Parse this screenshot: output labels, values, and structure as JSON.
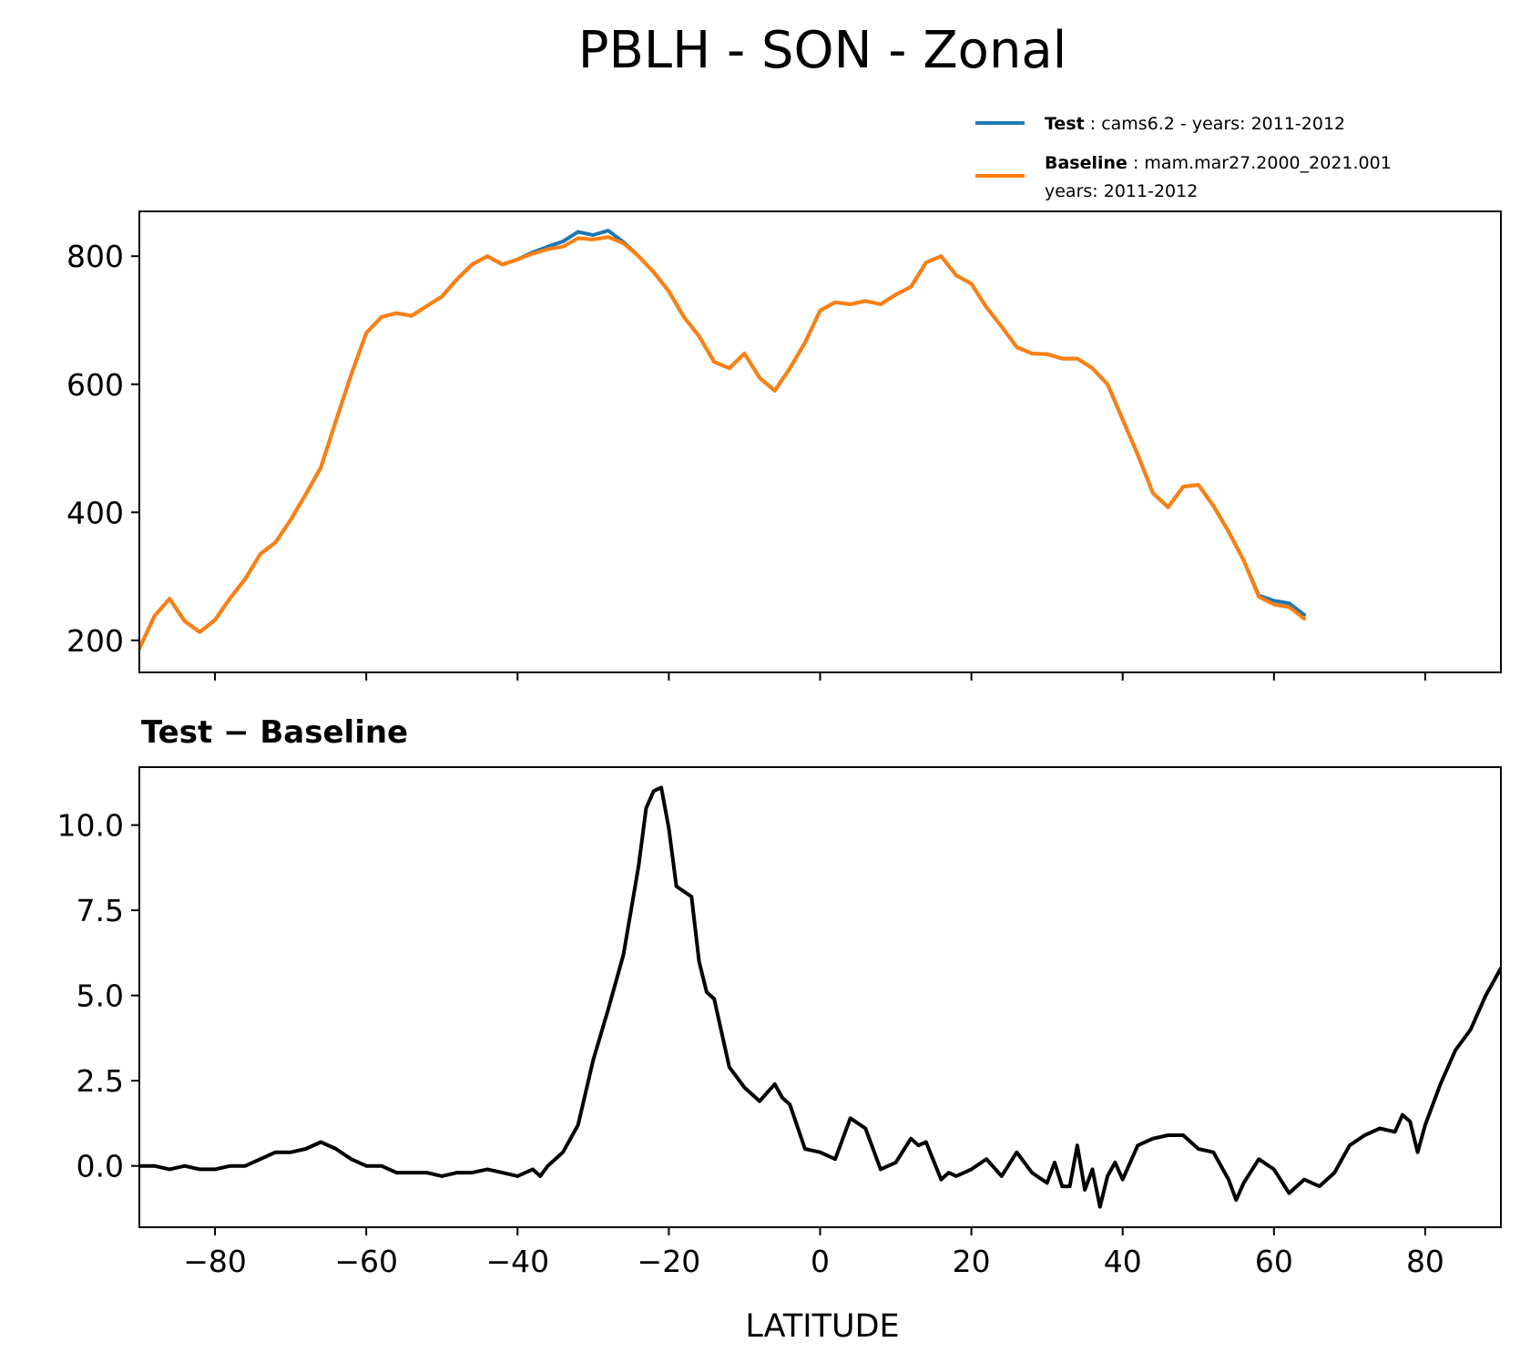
{
  "figure": {
    "title": "PBLH - SON - Zonal",
    "xlabel": "LATITUDE",
    "diff_title": "Test − Baseline"
  },
  "legend": {
    "test_bold": "Test",
    "test_rest": " : cams6.2 - years: 2011-2012",
    "baseline_bold": "Baseline",
    "baseline_rest": " : mam.mar27.2000_2021.001",
    "baseline_line2": "years: 2011-2012"
  },
  "colors": {
    "test": "#1f77b4",
    "baseline": "#ff7f0e",
    "diff": "#000000"
  },
  "chart_data": [
    {
      "type": "line",
      "title": "",
      "xlabel": "",
      "ylabel": "",
      "xlim": [
        -90,
        90
      ],
      "ylim": [
        150,
        870
      ],
      "xticks": [
        -80,
        -60,
        -40,
        -20,
        0,
        20,
        40,
        60,
        80
      ],
      "yticks": [
        200,
        400,
        600,
        800
      ],
      "ytick_labels": [
        "200",
        "400",
        "600",
        "800"
      ],
      "grid": false,
      "legend_position": "above-right",
      "x": [
        -90,
        -88,
        -86,
        -84,
        -82,
        -80,
        -78,
        -76,
        -74,
        -72,
        -70,
        -68,
        -66,
        -64,
        -62,
        -60,
        -58,
        -56,
        -54,
        -52,
        -50,
        -48,
        -46,
        -44,
        -42,
        -40,
        -38,
        -36,
        -34,
        -32,
        -30,
        -28,
        -26,
        -24,
        -22,
        -20,
        -18,
        -16,
        -14,
        -12,
        -10,
        -8,
        -6,
        -4,
        -2,
        0,
        2,
        4,
        6,
        8,
        10,
        12,
        14,
        16,
        18,
        20,
        22,
        24,
        26,
        28,
        30,
        32,
        34,
        36,
        38,
        40,
        42,
        44,
        46,
        48,
        50,
        52,
        54,
        56,
        58,
        60,
        62,
        64,
        66,
        68,
        70,
        72,
        74,
        76,
        78,
        80,
        82,
        84,
        86,
        88,
        90
      ],
      "series": [
        {
          "name": "Test",
          "values": [
            187,
            238,
            265,
            230,
            213,
            232,
            266,
            296,
            335,
            353,
            388,
            428,
            470,
            543,
            615,
            680,
            705,
            711,
            707,
            722,
            737,
            764,
            787,
            800,
            787,
            795,
            806,
            815,
            823,
            838,
            833,
            840,
            822,
            800,
            775,
            745,
            705,
            675,
            635,
            625,
            648,
            610,
            590,
            625,
            665,
            715,
            728,
            725,
            730,
            725,
            740,
            752,
            790,
            800,
            770,
            757,
            720,
            690,
            658,
            648,
            647,
            640,
            640,
            625,
            600,
            545,
            490,
            430,
            408,
            440,
            443,
            410,
            370,
            325,
            270,
            262,
            258,
            240
          ],
          "x": [
            -90,
            -88,
            -86,
            -84,
            -82,
            -80,
            -78,
            -76,
            -74,
            -72,
            -70,
            -68,
            -66,
            -64,
            -62,
            -60,
            -58,
            -56,
            -54,
            -52,
            -50,
            -48,
            -46,
            -44,
            -42,
            -40,
            -38,
            -36,
            -34,
            -32,
            -30,
            -28,
            -26,
            -24,
            -22,
            -20,
            -18,
            -16,
            -14,
            -12,
            -10,
            -8,
            -6,
            -4,
            -2,
            0,
            2,
            4,
            6,
            8,
            10,
            12,
            14,
            16,
            18,
            20,
            22,
            24,
            26,
            28,
            30,
            32,
            34,
            36,
            38,
            40,
            42,
            44,
            46,
            48,
            50,
            52,
            54,
            56,
            58,
            60,
            62,
            64
          ]
        },
        {
          "name": "Baseline",
          "values": [
            187,
            238,
            265,
            230,
            213,
            232,
            266,
            296,
            335,
            353,
            388,
            428,
            470,
            543,
            615,
            680,
            705,
            711,
            707,
            722,
            737,
            764,
            787,
            800,
            787,
            795,
            804,
            811,
            815,
            828,
            826,
            830,
            820,
            800,
            775,
            745,
            705,
            675,
            635,
            625,
            648,
            610,
            590,
            625,
            665,
            715,
            728,
            725,
            730,
            725,
            740,
            752,
            790,
            800,
            770,
            757,
            720,
            690,
            658,
            648,
            647,
            640,
            640,
            625,
            600,
            545,
            490,
            430,
            408,
            440,
            443,
            410,
            370,
            325,
            268,
            256,
            252,
            234
          ],
          "x": [
            -90,
            -88,
            -86,
            -84,
            -82,
            -80,
            -78,
            -76,
            -74,
            -72,
            -70,
            -68,
            -66,
            -64,
            -62,
            -60,
            -58,
            -56,
            -54,
            -52,
            -50,
            -48,
            -46,
            -44,
            -42,
            -40,
            -38,
            -36,
            -34,
            -32,
            -30,
            -28,
            -26,
            -24,
            -22,
            -20,
            -18,
            -16,
            -14,
            -12,
            -10,
            -8,
            -6,
            -4,
            -2,
            0,
            2,
            4,
            6,
            8,
            10,
            12,
            14,
            16,
            18,
            20,
            22,
            24,
            26,
            28,
            30,
            32,
            34,
            36,
            38,
            40,
            42,
            44,
            46,
            48,
            50,
            52,
            54,
            56,
            58,
            60,
            62,
            64
          ]
        }
      ]
    },
    {
      "type": "line",
      "title": "Test − Baseline",
      "xlabel": "LATITUDE",
      "ylabel": "",
      "xlim": [
        -90,
        90
      ],
      "ylim": [
        -1.8,
        11.7
      ],
      "xticks": [
        -80,
        -60,
        -40,
        -20,
        0,
        20,
        40,
        60,
        80
      ],
      "xtick_labels": [
        "−80",
        "−60",
        "−40",
        "−20",
        "0",
        "20",
        "40",
        "60",
        "80"
      ],
      "yticks": [
        0,
        2.5,
        5,
        7.5,
        10
      ],
      "ytick_labels": [
        "0.0",
        "2.5",
        "5.0",
        "7.5",
        "10.0"
      ],
      "grid": false,
      "series": [
        {
          "name": "",
          "x": [
            -90,
            -88,
            -86,
            -84,
            -82,
            -80,
            -78,
            -76,
            -74,
            -72,
            -70,
            -68,
            -66,
            -64,
            -62,
            -60,
            -58,
            -56,
            -54,
            -52,
            -50,
            -48,
            -46,
            -44,
            -42,
            -40,
            -38,
            -37,
            -36,
            -34,
            -32,
            -30,
            -28,
            -26,
            -24,
            -23,
            -22,
            -21,
            -20,
            -19,
            -17,
            -16,
            -15,
            -14,
            -12,
            -10,
            -8,
            -6,
            -5,
            -4,
            -2,
            0,
            2,
            4,
            6,
            8,
            10,
            12,
            13,
            14,
            16,
            17,
            18,
            20,
            22,
            24,
            26,
            28,
            30,
            31,
            32,
            33,
            34,
            35,
            36,
            37,
            38,
            39,
            40,
            42,
            44,
            46,
            48,
            50,
            52,
            54,
            55,
            56,
            58,
            60,
            62,
            64,
            66,
            68,
            70,
            72,
            74,
            76,
            77,
            78,
            79,
            80,
            82,
            84,
            86,
            88,
            90
          ],
          "values": [
            0.0,
            0.0,
            -0.1,
            0.0,
            -0.1,
            -0.1,
            0.0,
            0.0,
            0.2,
            0.4,
            0.4,
            0.5,
            0.7,
            0.5,
            0.2,
            0.0,
            0.0,
            -0.2,
            -0.2,
            -0.2,
            -0.3,
            -0.2,
            -0.2,
            -0.1,
            -0.2,
            -0.3,
            -0.1,
            -0.3,
            0.0,
            0.4,
            1.2,
            3.1,
            4.6,
            6.2,
            8.8,
            10.5,
            11.0,
            11.1,
            9.9,
            8.2,
            7.9,
            6.0,
            5.1,
            4.9,
            2.9,
            2.3,
            1.9,
            2.4,
            2.0,
            1.8,
            0.5,
            0.4,
            0.2,
            1.4,
            1.1,
            -0.1,
            0.1,
            0.8,
            0.6,
            0.7,
            -0.4,
            -0.2,
            -0.3,
            -0.1,
            0.2,
            -0.3,
            0.4,
            -0.2,
            -0.5,
            0.1,
            -0.6,
            -0.6,
            0.6,
            -0.7,
            -0.1,
            -1.2,
            -0.3,
            0.1,
            -0.4,
            0.6,
            0.8,
            0.9,
            0.9,
            0.5,
            0.4,
            -0.4,
            -1.0,
            -0.5,
            0.2,
            -0.1,
            -0.8,
            -0.4,
            -0.6,
            -0.2,
            0.6,
            0.9,
            1.1,
            1.0,
            1.5,
            1.3,
            0.4,
            1.2,
            2.4,
            3.4,
            4.0,
            5.0,
            5.8
          ]
        }
      ]
    }
  ]
}
